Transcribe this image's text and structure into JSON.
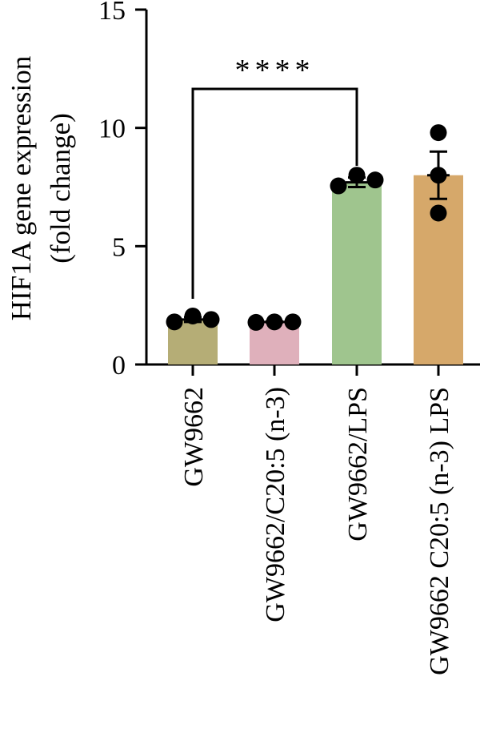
{
  "chart_data": {
    "type": "bar",
    "ylabel_lines": [
      "HIF1A gene expression",
      "(fold change)"
    ],
    "categories": [
      "GW9662",
      "GW9662/C20:5 (n-3)",
      "GW9662/LPS",
      "GW9662 C20:5 (n-3) LPS"
    ],
    "values": [
      1.9,
      1.8,
      7.7,
      8.0
    ],
    "error": [
      0.1,
      0.02,
      0.2,
      1.0
    ],
    "points": [
      [
        1.8,
        2.05,
        1.9
      ],
      [
        1.78,
        1.8,
        1.8
      ],
      [
        7.55,
        8.0,
        7.8
      ],
      [
        9.8,
        8.0,
        6.4
      ]
    ],
    "colors": [
      "#b5ad76",
      "#dfb0bb",
      "#9fc58e",
      "#d6a86a"
    ],
    "ylim": [
      0,
      15
    ],
    "yticks": [
      0,
      5,
      10,
      15
    ],
    "grid": false,
    "significance": {
      "from": 0,
      "to": 2,
      "label": "****"
    }
  }
}
